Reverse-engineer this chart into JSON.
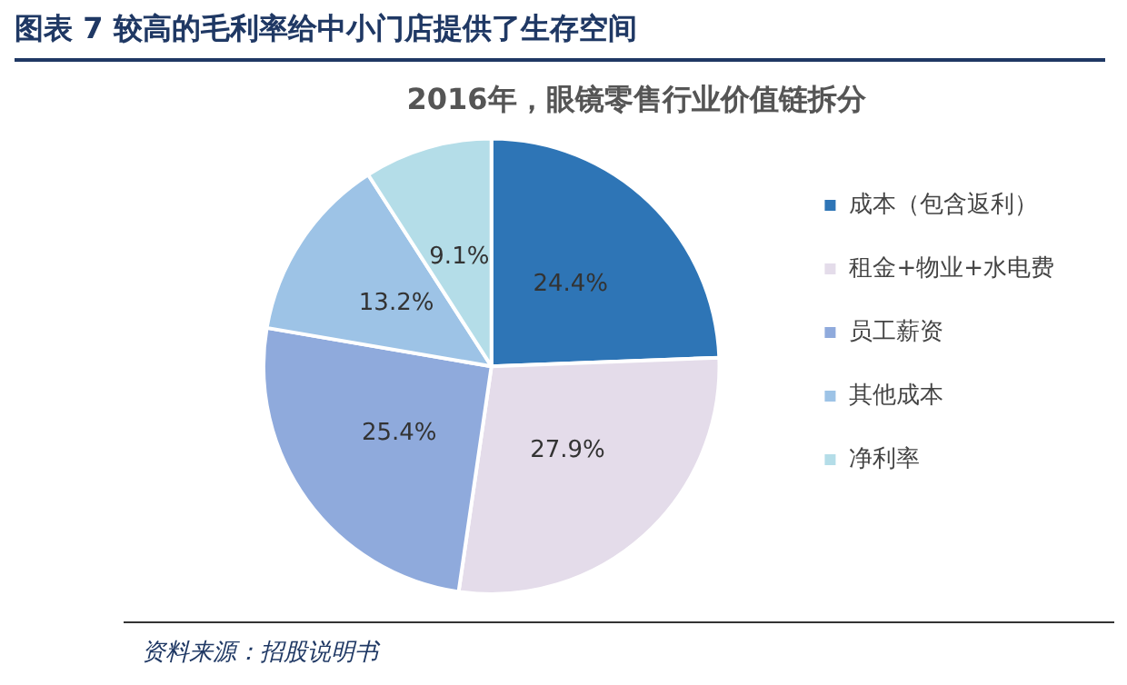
{
  "chart_data": {
    "type": "pie",
    "title": "图表 7   较高的毛利率给中小门店提供了生存空间",
    "subtitle": "2016年，眼镜零售行业价值链拆分",
    "categories": [
      "成本（包含返利）",
      "租金+物业+水电费",
      "员工薪资",
      "其他成本",
      "净利率"
    ],
    "values": [
      24.4,
      27.9,
      25.4,
      13.2,
      9.1
    ],
    "value_labels": [
      "24.4%",
      "27.9%",
      "25.4%",
      "13.2%",
      "9.1%"
    ],
    "colors": [
      "#2e75b6",
      "#e4dcea",
      "#8faadc",
      "#9dc3e6",
      "#b4dde8"
    ],
    "legend": "right",
    "annotations": [
      "资料来源：招股说明书"
    ]
  }
}
